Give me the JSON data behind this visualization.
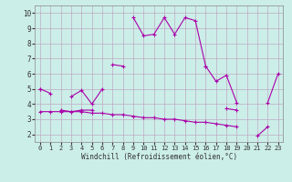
{
  "xlabel": "Windchill (Refroidissement éolien,°C)",
  "background_color": "#cceee8",
  "line_color": "#aa00aa",
  "x": [
    0,
    1,
    2,
    3,
    4,
    5,
    6,
    7,
    8,
    9,
    10,
    11,
    12,
    13,
    14,
    15,
    16,
    17,
    18,
    19,
    20,
    21,
    22,
    23
  ],
  "series1": [
    5.0,
    4.7,
    null,
    4.5,
    4.9,
    4.0,
    5.0,
    null,
    null,
    9.7,
    8.5,
    8.6,
    9.7,
    8.6,
    9.7,
    9.5,
    6.5,
    null,
    null,
    null,
    null,
    null,
    null,
    null
  ],
  "series2": [
    5.0,
    null,
    null,
    null,
    null,
    null,
    null,
    6.6,
    6.5,
    null,
    null,
    null,
    null,
    null,
    null,
    null,
    6.5,
    5.5,
    5.9,
    4.1,
    null,
    null,
    4.1,
    6.0
  ],
  "series3": [
    null,
    null,
    3.6,
    3.5,
    3.6,
    3.6,
    null,
    null,
    null,
    null,
    null,
    null,
    null,
    null,
    null,
    null,
    null,
    null,
    3.7,
    3.6,
    null,
    null,
    null,
    null
  ],
  "series4": [
    3.5,
    3.5,
    3.5,
    3.5,
    3.5,
    3.4,
    3.4,
    3.3,
    3.3,
    3.2,
    3.1,
    3.1,
    3.0,
    3.0,
    2.9,
    2.8,
    2.8,
    2.7,
    2.6,
    2.5,
    null,
    1.9,
    2.5,
    null
  ],
  "ylim": [
    1.5,
    10.5
  ],
  "xlim": [
    -0.5,
    23.5
  ],
  "yticks": [
    2,
    3,
    4,
    5,
    6,
    7,
    8,
    9,
    10
  ],
  "xticks": [
    0,
    1,
    2,
    3,
    4,
    5,
    6,
    7,
    8,
    9,
    10,
    11,
    12,
    13,
    14,
    15,
    16,
    17,
    18,
    19,
    20,
    21,
    22,
    23
  ]
}
